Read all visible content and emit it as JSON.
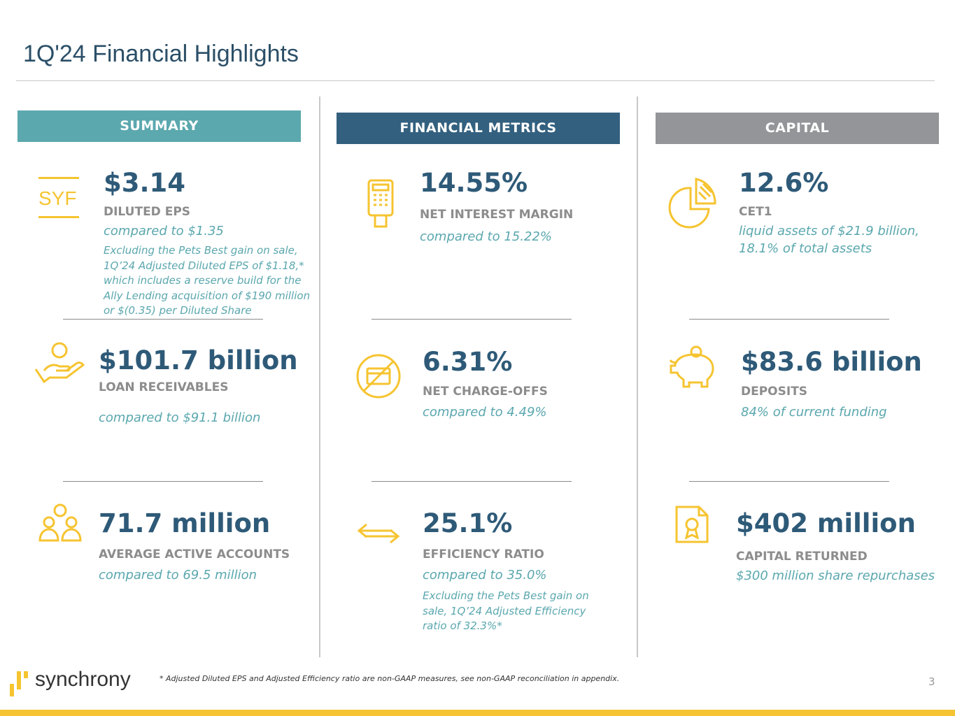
{
  "title": "1Q'24 Financial Highlights",
  "colors": {
    "value": "#2e5a78",
    "accent_text": "#5aa7ae",
    "label": "#8c8c8c",
    "icon": "#f6c431",
    "summary_bar": "#5ba8ae",
    "metrics_bar": "#33607f",
    "capital_bar": "#939598"
  },
  "sections": {
    "summary": "SUMMARY",
    "metrics": "FINANCIAL METRICS",
    "capital": "CAPITAL"
  },
  "summary": [
    {
      "icon": "syf-ticker-icon",
      "icon_text": "SYF",
      "value": "$3.14",
      "label": "DILUTED EPS",
      "compare": "compared to $1.35",
      "note": "Excluding the Pets Best gain on sale, 1Q’24 Adjusted Diluted EPS of $1.18,* which includes a reserve build for the Ally Lending acquisition of $190 million or $(0.35) per Diluted Share"
    },
    {
      "icon": "hand-coin-icon",
      "value": "$101.7 billion",
      "label": "LOAN RECEIVABLES",
      "compare": "compared to $91.1 billion"
    },
    {
      "icon": "people-icon",
      "value": "71.7 million",
      "label": "AVERAGE ACTIVE ACCOUNTS",
      "compare": "compared to 69.5 million"
    }
  ],
  "metrics": [
    {
      "icon": "card-terminal-icon",
      "value": "14.55%",
      "label": "NET INTEREST MARGIN",
      "compare": "compared to 15.22%"
    },
    {
      "icon": "no-card-icon",
      "value": "6.31%",
      "label": "NET CHARGE-OFFS",
      "compare": "compared to 4.49%"
    },
    {
      "icon": "arrows-exchange-icon",
      "value": "25.1%",
      "label": "EFFICIENCY RATIO",
      "compare": "compared to 35.0%",
      "note": "Excluding the Pets Best gain on sale, 1Q’24 Adjusted Efficiency ratio of 32.3%*"
    }
  ],
  "capital": [
    {
      "icon": "pie-chart-icon",
      "value": "12.6%",
      "label": "CET1",
      "compare": "liquid assets of $21.9 billion,",
      "compare2": "18.1% of total assets"
    },
    {
      "icon": "piggy-bank-icon",
      "value": "$83.6 billion",
      "label": "DEPOSITS",
      "compare": "84% of current funding"
    },
    {
      "icon": "certificate-icon",
      "value": "$402 million",
      "label": "CAPITAL RETURNED",
      "compare": "$300 million share repurchases"
    }
  ],
  "footer": {
    "logo": "synchrony",
    "footnote": "*  Adjusted Diluted EPS and Adjusted Efficiency ratio are non-GAAP measures, see non-GAAP reconciliation in appendix.",
    "page": "3"
  }
}
